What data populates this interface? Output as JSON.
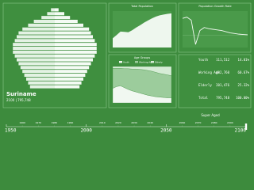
{
  "country": {
    "name": "Suriname",
    "subtitle": "2100 | 795,748"
  },
  "pyramid": {
    "male": [
      13,
      14,
      15,
      16,
      17,
      18,
      19,
      20,
      21,
      22,
      22,
      22,
      21,
      20,
      19,
      17,
      14,
      11,
      7,
      4,
      2
    ],
    "female": [
      13,
      14,
      15,
      16,
      17,
      18,
      19,
      20,
      21,
      22,
      22,
      22,
      21,
      20,
      19,
      18,
      15,
      12,
      8,
      5,
      2
    ],
    "xlim": [
      0,
      25
    ]
  },
  "charts": [
    {
      "title": "Total Population",
      "type": "area",
      "x": [
        1950,
        1960,
        1970,
        1980,
        1990,
        2000,
        2010,
        2020,
        2030,
        2040,
        2050,
        2060,
        2070,
        2080,
        2090,
        2100
      ],
      "values": [
        215,
        290,
        372,
        365,
        356,
        405,
        467,
        520,
        580,
        630,
        680,
        720,
        750,
        770,
        785,
        796
      ],
      "xlim": [
        1950,
        2100
      ],
      "ylim": [
        0,
        850
      ]
    },
    {
      "title": "Population Growth Rate",
      "type": "line",
      "x": [
        1950,
        1960,
        1970,
        1980,
        1990,
        2000,
        2010,
        2020,
        2030,
        2040,
        2050,
        2060,
        2070,
        2080,
        2090,
        2100
      ],
      "values": [
        2.8,
        3.0,
        2.5,
        -1.5,
        0.8,
        1.3,
        1.1,
        1.0,
        0.9,
        0.8,
        0.6,
        0.4,
        0.3,
        0.2,
        0.15,
        0.1
      ],
      "xlim": [
        1950,
        2100
      ],
      "ylim": [
        -2,
        4
      ]
    },
    {
      "title": "Age Groups",
      "type": "stacked_area",
      "x": [
        1950,
        1960,
        1970,
        1980,
        1990,
        2000,
        2010,
        2020,
        2030,
        2040,
        2050,
        2060,
        2070,
        2080,
        2090,
        2100
      ],
      "xlim": [
        1950,
        2100
      ],
      "ylim": [
        0,
        100
      ],
      "series": [
        {
          "name": "Youth",
          "color": "#f1f8f1",
          "values": [
            40,
            45,
            47,
            42,
            37,
            33,
            30,
            27,
            24,
            21,
            19,
            17,
            16,
            15,
            14,
            14.01
          ]
        },
        {
          "name": "Working Age",
          "color": "#9ccc9c",
          "values": [
            55,
            50,
            48,
            52,
            57,
            60,
            63,
            65,
            67,
            68,
            68,
            67,
            65,
            64,
            63,
            60.67
          ]
        },
        {
          "name": "Elderly",
          "color": "#d6ecd6",
          "values": [
            5,
            5,
            5,
            6,
            6,
            7,
            7,
            8,
            9,
            11,
            13,
            16,
            19,
            21,
            23,
            25.32
          ]
        }
      ]
    }
  ],
  "table": {
    "rows": [
      [
        "Youth",
        "111,512",
        "14.01%"
      ],
      [
        "Working Age",
        "482,760",
        "60.67%"
      ],
      [
        "Elderly",
        "201,476",
        "25.32%"
      ],
      [
        "Total",
        "795,748",
        "100.00%"
      ]
    ]
  },
  "timeline": {
    "xlim": [
      1950,
      2100
    ],
    "ticks": [
      1950,
      2000,
      2050,
      2100
    ],
    "minor_ticks": [
      1960,
      1970,
      1980,
      1990,
      2010,
      2020,
      2030,
      2040,
      2060,
      2070,
      2080,
      2090
    ],
    "value": 2100,
    "stage": "Super Aged"
  }
}
